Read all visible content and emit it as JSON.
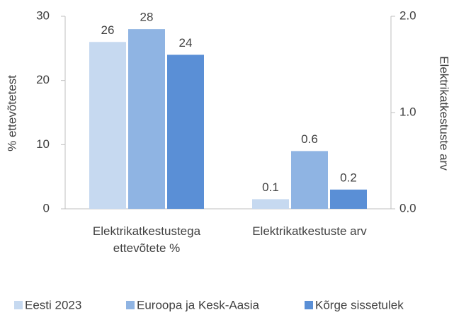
{
  "chart_data": {
    "type": "bar",
    "categories": [
      "Elektrikatkestustega ettevõtete %",
      "Elektrikatkestuste arv"
    ],
    "category_axis": [
      "y",
      "y2"
    ],
    "series": [
      {
        "name": "Eesti 2023",
        "color": "#c6d9f0",
        "values": [
          26,
          0.1
        ]
      },
      {
        "name": "Euroopa ja Kesk-Aasia",
        "color": "#8fb4e3",
        "values": [
          28,
          0.6
        ]
      },
      {
        "name": "Kõrge sissetulek",
        "color": "#5a8fd6",
        "values": [
          24,
          0.2
        ]
      }
    ],
    "ylabel": "% ettevõtetest",
    "y2label": "Elektrikatkestuste arv",
    "ylim": [
      0,
      30
    ],
    "yticks": [
      0,
      10,
      20,
      30
    ],
    "y2lim": [
      0,
      2
    ],
    "y2ticks": [
      {
        "value": 0,
        "label": "0.0"
      },
      {
        "value": 1,
        "label": "1.0"
      },
      {
        "value": 2,
        "label": "2.0"
      }
    ],
    "legend": "bottom"
  }
}
